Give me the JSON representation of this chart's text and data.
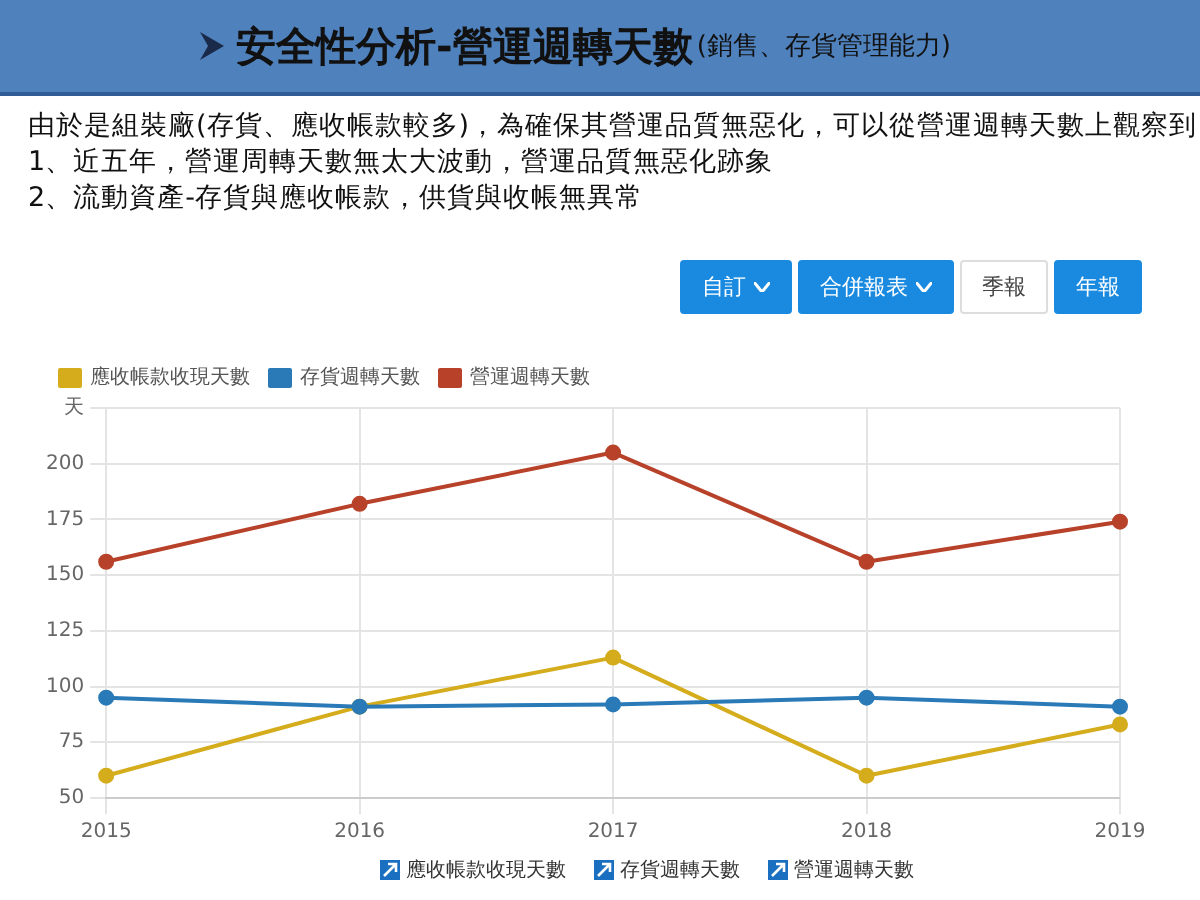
{
  "chart_data": {
    "type": "line",
    "title": "安全性分析-營運週轉天數",
    "subtitle": "(銷售、存貨管理能力)",
    "annotations": [
      "由於是組裝廠(存貨、應收帳款較多)，為確保其營運品質無惡化，可以從營運週轉天數上觀察到",
      "1、近五年，營運周轉天數無太大波動，營運品質無惡化跡象",
      "2、流動資產-存貨與應收帳款，供貨與收帳無異常",
      "自訂",
      "合併報表",
      "季報",
      "年報",
      "應收帳款收現天數",
      "存貨週轉天數",
      "營運週轉天數"
    ],
    "categories": [
      "2015",
      "2016",
      "2017",
      "2018",
      "2019"
    ],
    "series": [
      {
        "name": "應收帳款收現天數",
        "color": "#d4ac1c",
        "values": [
          60,
          91,
          113,
          60,
          83
        ]
      },
      {
        "name": "存貨週轉天數",
        "color": "#2a7ab8",
        "values": [
          95,
          91,
          92,
          95,
          91
        ]
      },
      {
        "name": "營運週轉天數",
        "color": "#b8412a",
        "values": [
          156,
          182,
          205,
          156,
          174
        ]
      }
    ],
    "ylim": [
      50,
      225
    ],
    "yticks": [
      50,
      75,
      100,
      125,
      150,
      175,
      200,
      {
        "value": 225,
        "label": "天"
      }
    ],
    "grid": true,
    "legend": "top left",
    "marker": "circle",
    "line_style": "solid"
  }
}
